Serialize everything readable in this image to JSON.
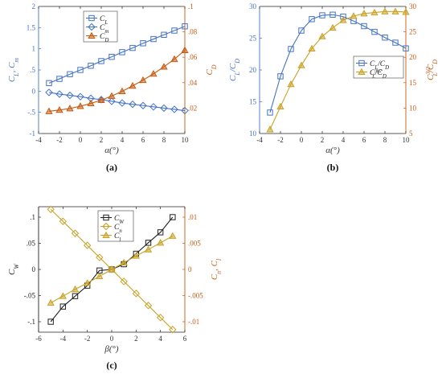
{
  "colors": {
    "blue": "#4472c4",
    "orange": "#c55a11",
    "gold": "#c9a227",
    "black": "#222222",
    "axis_left_a": "#4472c4",
    "axis_right_a": "#c55a11",
    "axis_left_b": "#4472c4",
    "axis_right_b": "#c55a11",
    "axis_left_c": "#222222",
    "axis_right_c": "#c55a11"
  },
  "chart_data": [
    {
      "id": "a",
      "type": "line",
      "caption": "(a)",
      "xlabel": "α(°)",
      "ylabel_left": "C_L, C_m",
      "ylabel_right": "C_D",
      "xlim": [
        -4,
        10
      ],
      "xticks": [
        -4,
        -2,
        0,
        2,
        4,
        6,
        8,
        10
      ],
      "ylim_left": [
        -1,
        2
      ],
      "yticks_left": [
        -1,
        -0.5,
        0,
        0.5,
        1,
        1.5,
        2
      ],
      "ylim_right": [
        0,
        0.1
      ],
      "yticks_right": [
        0.02,
        0.04,
        0.06,
        0.08,
        0.1
      ],
      "x": [
        -3,
        -2,
        -1,
        0,
        1,
        2,
        3,
        4,
        5,
        6,
        7,
        8,
        9,
        10
      ],
      "series": [
        {
          "name": "C_L",
          "axis": "left",
          "color": "blue",
          "marker": "square",
          "values": [
            0.19,
            0.29,
            0.4,
            0.5,
            0.6,
            0.71,
            0.81,
            0.92,
            1.02,
            1.13,
            1.23,
            1.33,
            1.43,
            1.53
          ]
        },
        {
          "name": "C_m",
          "axis": "left",
          "color": "blue",
          "marker": "diamond",
          "values": [
            -0.03,
            -0.07,
            -0.1,
            -0.13,
            -0.17,
            -0.2,
            -0.24,
            -0.28,
            -0.31,
            -0.34,
            -0.37,
            -0.4,
            -0.43,
            -0.46
          ]
        },
        {
          "name": "C_D",
          "axis": "right",
          "color": "orange",
          "marker": "triangle",
          "values": [
            0.0175,
            0.0185,
            0.0197,
            0.0215,
            0.0237,
            0.0263,
            0.0295,
            0.0332,
            0.0375,
            0.042,
            0.047,
            0.0525,
            0.0585,
            0.0655
          ]
        }
      ],
      "legend_position": "top-left"
    },
    {
      "id": "b",
      "type": "line",
      "caption": "(b)",
      "xlabel": "α(°)",
      "ylabel_left": "C_L/C_D",
      "ylabel_right": "C_L^{3/2}/C_D",
      "xlim": [
        -4,
        10
      ],
      "xticks": [
        -4,
        -2,
        0,
        2,
        4,
        6,
        8,
        10
      ],
      "ylim_left": [
        10,
        30
      ],
      "yticks_left": [
        10,
        15,
        20,
        25,
        30
      ],
      "ylim_right": [
        5,
        30
      ],
      "yticks_right": [
        5,
        10,
        15,
        20,
        25,
        30
      ],
      "x": [
        -3,
        -2,
        -1,
        0,
        1,
        2,
        3,
        4,
        5,
        6,
        7,
        8,
        9,
        10
      ],
      "series": [
        {
          "name": "C_L/C_D",
          "axis": "left",
          "color": "blue",
          "marker": "square",
          "values": [
            13.3,
            19.0,
            23.3,
            26.2,
            28.0,
            28.6,
            28.7,
            28.4,
            27.7,
            26.9,
            26.0,
            25.1,
            24.3,
            23.4
          ]
        },
        {
          "name": "C_L^{3/2}/C_D",
          "axis": "right",
          "color": "gold",
          "marker": "triangle",
          "values": [
            5.8,
            10.3,
            14.7,
            18.4,
            21.7,
            24.1,
            25.8,
            27.3,
            28.1,
            28.6,
            28.8,
            29.0,
            29.0,
            28.9
          ]
        }
      ],
      "legend_position": "center-right"
    },
    {
      "id": "c",
      "type": "line",
      "caption": "(c)",
      "xlabel": "β(°)",
      "ylabel_left": "C_W",
      "ylabel_right": "C_n, C_l",
      "xlim": [
        -6,
        6
      ],
      "xticks": [
        -6,
        -4,
        -2,
        0,
        2,
        4,
        6
      ],
      "ylim_left": [
        -0.12,
        0.12
      ],
      "yticks_left": [
        -0.1,
        -0.05,
        0,
        0.05,
        0.1
      ],
      "ylim_right": [
        -0.012,
        0.012
      ],
      "yticks_right": [
        -0.01,
        -0.005,
        0,
        0.005,
        0.01
      ],
      "x": [
        -5,
        -4,
        -3,
        -2,
        -1,
        0,
        1,
        2,
        3,
        4,
        5
      ],
      "series": [
        {
          "name": "C_W",
          "axis": "left",
          "color": "black",
          "marker": "square",
          "values": [
            -0.1,
            -0.071,
            -0.051,
            -0.031,
            -0.002,
            0.0,
            0.01,
            0.03,
            0.051,
            0.071,
            0.1
          ]
        },
        {
          "name": "C_n",
          "axis": "right",
          "color": "gold",
          "marker": "diamond",
          "values": [
            0.0115,
            0.0092,
            0.0069,
            0.0046,
            0.0023,
            0.0,
            -0.0023,
            -0.0046,
            -0.0069,
            -0.0092,
            -0.0115
          ]
        },
        {
          "name": "C_l",
          "axis": "right",
          "color": "gold",
          "marker": "triangle",
          "values": [
            -0.0064,
            -0.0051,
            -0.0038,
            -0.0026,
            -0.0013,
            0.0,
            0.0013,
            0.0026,
            0.0038,
            0.0051,
            0.0064
          ]
        }
      ],
      "legend_position": "top-left"
    }
  ]
}
